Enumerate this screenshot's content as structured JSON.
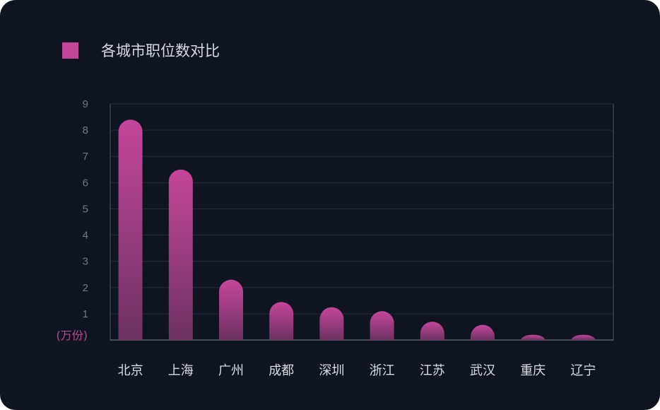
{
  "chart_data": {
    "type": "bar",
    "title": "",
    "legend": [
      "各城市职位数对比"
    ],
    "ylabel": "(万份)",
    "xlabel": "",
    "ylim": [
      0,
      9
    ],
    "yticks": [
      "1",
      "2",
      "3",
      "4",
      "5",
      "6",
      "7",
      "8",
      "9"
    ],
    "categories": [
      "北京",
      "上海",
      "广州",
      "成都",
      "深圳",
      "浙江",
      "江苏",
      "武汉",
      "重庆",
      "辽宁"
    ],
    "series": [
      {
        "name": "各城市职位数对比",
        "values": [
          8.4,
          6.5,
          2.3,
          1.45,
          1.25,
          1.1,
          0.7,
          0.58,
          0.2,
          0.2
        ]
      }
    ],
    "grid": true,
    "legend_position": "top-left",
    "bar_color_top": "#c4469a",
    "bar_color_bottom": "#6e3261"
  }
}
